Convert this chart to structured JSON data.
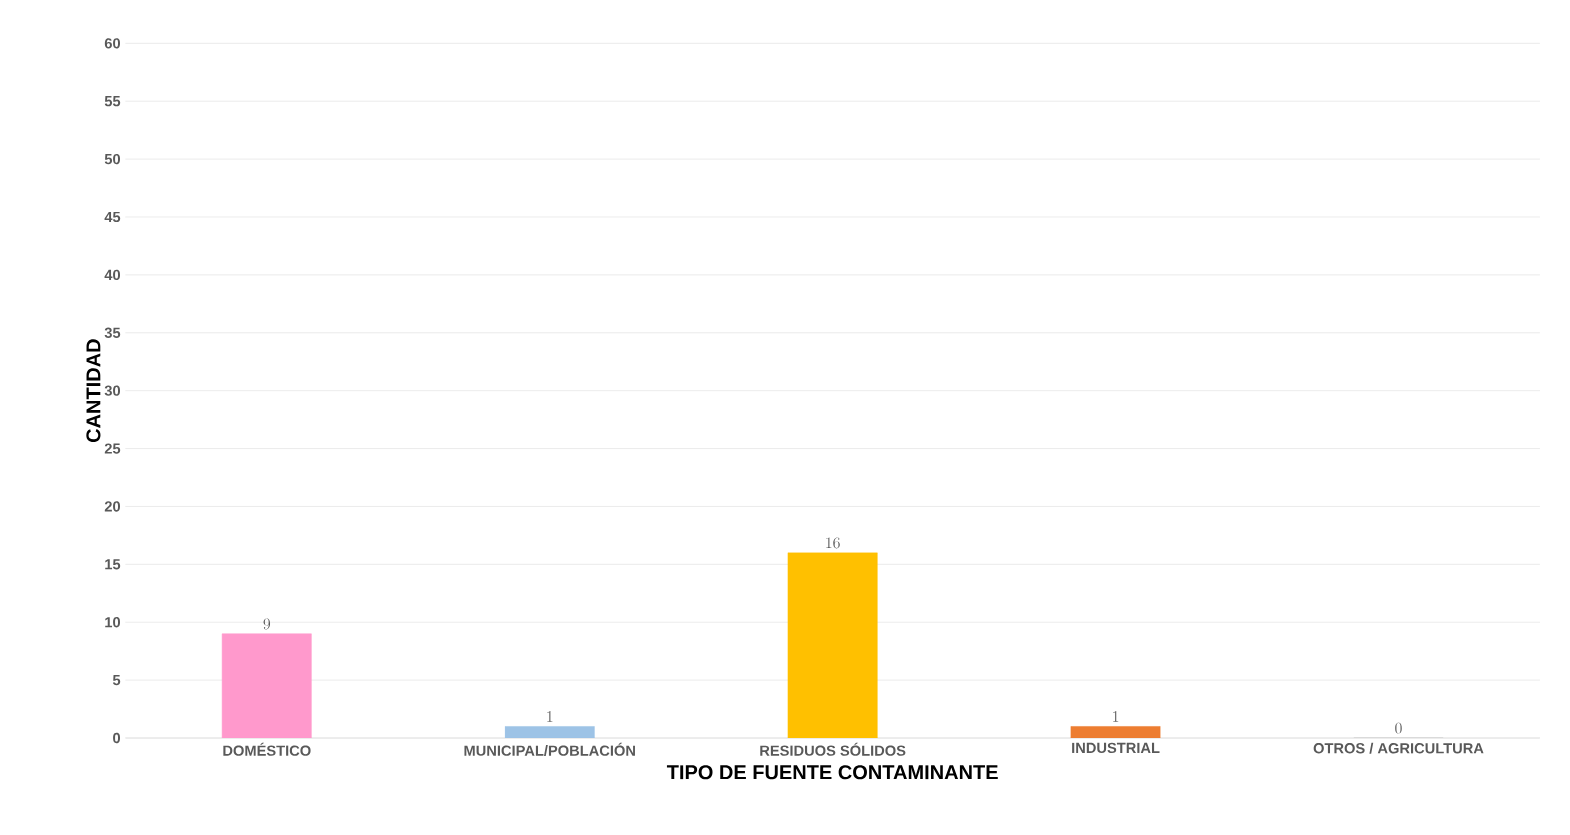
{
  "chart_data": {
    "type": "bar",
    "xlabel": "TIPO DE FUENTE CONTAMINANTE",
    "ylabel": "CANTIDAD",
    "categories": [
      "DOMÉSTICO",
      "MUNICIPAL/POBLACIÓN",
      "RESIDUOS SÓLIDOS",
      "INDUSTRIAL",
      "OTROS / AGRICULTURA"
    ],
    "values": [
      9,
      1,
      16,
      1,
      0
    ],
    "colors": [
      "#ff99cc",
      "#9dc3e6",
      "#ffc000",
      "#ed7d31",
      "#a5a5a5"
    ],
    "ylim": [
      0,
      60
    ],
    "yticks": [
      0,
      5,
      10,
      15,
      20,
      25,
      30,
      35,
      40,
      45,
      50,
      55,
      60
    ],
    "grid": "y",
    "data_labels": true
  }
}
